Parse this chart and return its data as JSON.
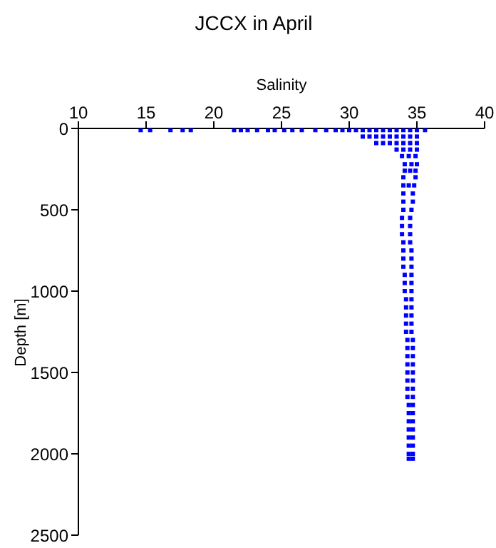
{
  "chart_data": {
    "type": "scatter",
    "title": "JCCX in April",
    "xlabel": "Salinity",
    "ylabel": "Depth [m]",
    "xlim": [
      10,
      40
    ],
    "xticks": [
      10,
      15,
      20,
      25,
      30,
      35,
      40
    ],
    "ylim": [
      2500,
      0
    ],
    "yticks": [
      0,
      500,
      1000,
      1500,
      2000,
      2500
    ],
    "grid": false,
    "legend": false,
    "marker": "square",
    "series": [
      {
        "color": "#0000ff",
        "x": [
          14.6,
          15.3,
          16.8,
          17.7,
          18.3,
          21.5,
          22.0,
          22.5,
          23.2,
          24.0,
          24.5,
          25.2,
          25.8,
          26.5,
          27.5,
          28.3,
          29.0,
          29.5,
          30.0,
          30.5,
          31.0,
          31.5,
          32.0,
          32.5,
          33.0,
          33.5,
          34.0,
          34.5,
          35.0,
          35.6,
          31.0,
          31.5,
          32.0,
          32.5,
          33.0,
          33.5,
          34.0,
          34.5,
          35.0,
          32.0,
          32.5,
          33.0,
          33.5,
          34.0,
          34.5,
          35.0,
          33.5,
          34.0,
          34.5,
          35.0,
          33.9,
          34.4,
          34.9,
          34.1,
          34.6,
          35.0,
          34.1,
          34.5,
          34.9,
          34.0,
          34.9,
          34.0,
          34.4,
          34.8,
          34.0,
          34.7,
          34.0,
          34.7,
          34.0,
          34.6,
          33.9,
          34.5,
          33.9,
          34.5,
          33.9,
          34.5,
          34.0,
          34.5,
          34.0,
          34.6,
          34.0,
          34.6,
          34.0,
          34.6,
          34.1,
          34.6,
          34.1,
          34.6,
          34.1,
          34.6,
          34.2,
          34.6,
          34.2,
          34.6,
          34.2,
          34.6,
          34.2,
          34.6,
          34.2,
          34.6,
          34.3,
          34.7,
          34.3,
          34.7,
          34.3,
          34.7,
          34.3,
          34.7,
          34.3,
          34.7,
          34.3,
          34.7,
          34.3,
          34.7,
          34.3,
          34.7,
          34.4,
          34.7,
          34.4,
          34.7,
          34.4,
          34.7,
          34.4,
          34.7,
          34.4,
          34.7,
          34.4,
          34.7,
          34.4,
          34.7,
          34.4,
          34.7
        ],
        "values": [
          10,
          10,
          10,
          10,
          10,
          10,
          10,
          10,
          10,
          10,
          10,
          10,
          10,
          10,
          10,
          10,
          10,
          10,
          10,
          10,
          10,
          10,
          10,
          10,
          10,
          10,
          10,
          10,
          10,
          10,
          50,
          50,
          50,
          50,
          50,
          50,
          50,
          50,
          50,
          90,
          90,
          90,
          90,
          90,
          90,
          90,
          130,
          130,
          130,
          130,
          170,
          170,
          170,
          220,
          220,
          220,
          260,
          260,
          260,
          300,
          300,
          350,
          350,
          350,
          400,
          400,
          450,
          450,
          500,
          500,
          550,
          550,
          600,
          600,
          650,
          650,
          700,
          700,
          750,
          750,
          800,
          800,
          850,
          850,
          900,
          900,
          950,
          950,
          1000,
          1000,
          1050,
          1050,
          1100,
          1100,
          1150,
          1150,
          1200,
          1200,
          1250,
          1250,
          1300,
          1300,
          1350,
          1350,
          1400,
          1400,
          1450,
          1450,
          1500,
          1500,
          1550,
          1550,
          1600,
          1600,
          1650,
          1650,
          1700,
          1700,
          1750,
          1750,
          1800,
          1800,
          1850,
          1850,
          1900,
          1900,
          1950,
          1950,
          2000,
          2000,
          2030,
          2030
        ]
      }
    ]
  }
}
